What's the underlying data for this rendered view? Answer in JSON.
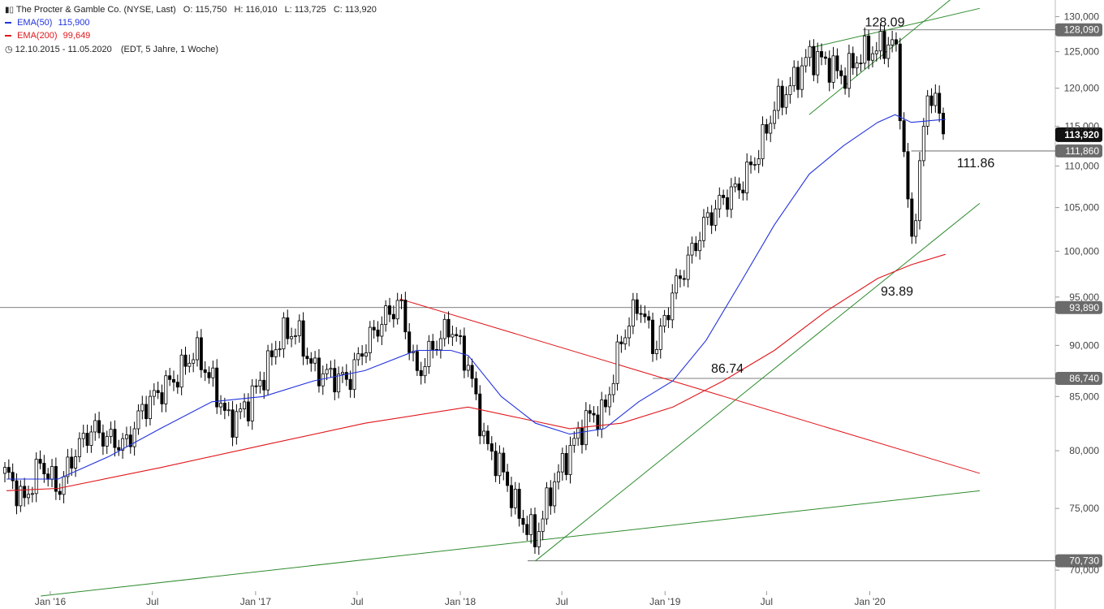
{
  "header": {
    "title": "The Procter & Gamble Co. (NYSE, Last)",
    "open": "O: 115,750",
    "high": "H: 116,010",
    "low": "L: 113,725",
    "close": "C: 113,920",
    "ema50_label": "EMA(50)",
    "ema50_value": "115,900",
    "ema200_label": "EMA(200)",
    "ema200_value": "99,649",
    "range": "12.10.2015 - 11.05.2020",
    "range_info": "(EDT, 5 Jahre, 1 Woche)",
    "colors": {
      "ema50": "#2233dd",
      "ema200": "#e0161b",
      "trend_green": "#2e8b2e",
      "trend_red": "#e0161b"
    }
  },
  "chart_data": {
    "type": "candlestick",
    "title": "The Procter & Gamble Co. (NYSE, Last)",
    "scale": "log",
    "ylim": [
      69500,
      131000
    ],
    "y_ticks": [
      "130,000",
      "125,000",
      "120,000",
      "115,000",
      "110,000",
      "105,000",
      "100,000",
      "95,000",
      "90,000",
      "85,000",
      "80,000",
      "75,000",
      "70,000"
    ],
    "y_tick_values": [
      130000,
      125000,
      120000,
      115000,
      110000,
      105000,
      100000,
      95000,
      90000,
      85000,
      80000,
      75000,
      70000
    ],
    "x_ticks": [
      "Jan '16",
      "Jul",
      "Jan '17",
      "Jul",
      "Jan '18",
      "Jul",
      "Jan '19",
      "Jul",
      "Jan '20"
    ],
    "x_tick_dates": [
      "2016-01",
      "2016-07",
      "2017-01",
      "2017-07",
      "2018-01",
      "2018-07",
      "2019-01",
      "2019-07",
      "2020-01"
    ],
    "x_range": [
      "2015-10-12",
      "2020-05-11"
    ],
    "price_path": [
      [
        "2015-10",
        78000
      ],
      [
        "2015-11",
        75500
      ],
      [
        "2015-12",
        79000
      ],
      [
        "2016-01",
        76500
      ],
      [
        "2016-02",
        80000
      ],
      [
        "2016-03",
        82000
      ],
      [
        "2016-04",
        81000
      ],
      [
        "2016-05",
        80500
      ],
      [
        "2016-06",
        84000
      ],
      [
        "2016-07",
        85500
      ],
      [
        "2016-08",
        87000
      ],
      [
        "2016-09",
        89500
      ],
      [
        "2016-10",
        86500
      ],
      [
        "2016-11",
        82500
      ],
      [
        "2016-12",
        84000
      ],
      [
        "2017-01",
        87000
      ],
      [
        "2017-02",
        91000
      ],
      [
        "2017-03",
        91500
      ],
      [
        "2017-04",
        87500
      ],
      [
        "2017-05",
        87000
      ],
      [
        "2017-06",
        86500
      ],
      [
        "2017-07",
        90000
      ],
      [
        "2017-08",
        92500
      ],
      [
        "2017-09",
        94500
      ],
      [
        "2017-10",
        87000
      ],
      [
        "2017-11",
        90000
      ],
      [
        "2017-12",
        92000
      ],
      [
        "2018-01",
        88000
      ],
      [
        "2018-02",
        80500
      ],
      [
        "2018-03",
        78500
      ],
      [
        "2018-04",
        74500
      ],
      [
        "2018-05",
        72500
      ],
      [
        "2018-06",
        77000
      ],
      [
        "2018-07",
        80000
      ],
      [
        "2018-08",
        83000
      ],
      [
        "2018-09",
        83500
      ],
      [
        "2018-10",
        90500
      ],
      [
        "2018-11",
        94500
      ],
      [
        "2018-12",
        89500
      ],
      [
        "2019-01",
        95500
      ],
      [
        "2019-02",
        99500
      ],
      [
        "2019-03",
        103500
      ],
      [
        "2019-04",
        106000
      ],
      [
        "2019-05",
        107500
      ],
      [
        "2019-06",
        111500
      ],
      [
        "2019-07",
        117500
      ],
      [
        "2019-08",
        120500
      ],
      [
        "2019-09",
        124500
      ],
      [
        "2019-10",
        123500
      ],
      [
        "2019-11",
        121500
      ],
      [
        "2019-12",
        124500
      ],
      [
        "2020-01",
        125500
      ],
      [
        "2020-02",
        126500
      ],
      [
        "2020-03",
        100500
      ],
      [
        "2020-04",
        120500
      ],
      [
        "2020-05",
        113920
      ]
    ],
    "ema50": [
      [
        "2015-10",
        77500
      ],
      [
        "2016-01",
        77500
      ],
      [
        "2016-04",
        79500
      ],
      [
        "2016-07",
        82000
      ],
      [
        "2016-10",
        84500
      ],
      [
        "2017-01",
        85000
      ],
      [
        "2017-04",
        86500
      ],
      [
        "2017-07",
        87500
      ],
      [
        "2017-10",
        89500
      ],
      [
        "2017-12",
        89500
      ],
      [
        "2018-01",
        89000
      ],
      [
        "2018-03",
        85000
      ],
      [
        "2018-05",
        82500
      ],
      [
        "2018-07",
        81500
      ],
      [
        "2018-09",
        82000
      ],
      [
        "2018-11",
        84500
      ],
      [
        "2019-01",
        86500
      ],
      [
        "2019-03",
        90500
      ],
      [
        "2019-05",
        96500
      ],
      [
        "2019-07",
        103000
      ],
      [
        "2019-09",
        109000
      ],
      [
        "2019-11",
        112500
      ],
      [
        "2020-01",
        115500
      ],
      [
        "2020-02",
        116500
      ],
      [
        "2020-03",
        115500
      ],
      [
        "2020-05",
        115900
      ]
    ],
    "ema200": [
      [
        "2015-10",
        76500
      ],
      [
        "2016-01",
        76700
      ],
      [
        "2016-07",
        78500
      ],
      [
        "2017-01",
        80500
      ],
      [
        "2017-07",
        82500
      ],
      [
        "2018-01",
        84000
      ],
      [
        "2018-04",
        83000
      ],
      [
        "2018-07",
        82000
      ],
      [
        "2018-10",
        82500
      ],
      [
        "2019-01",
        84000
      ],
      [
        "2019-04",
        86500
      ],
      [
        "2019-07",
        89500
      ],
      [
        "2019-10",
        93500
      ],
      [
        "2020-01",
        97000
      ],
      [
        "2020-03",
        98500
      ],
      [
        "2020-05",
        99649
      ]
    ],
    "horizontal_levels": [
      {
        "value": 128090,
        "label": "128,090"
      },
      {
        "value": 111860,
        "label": "111,860"
      },
      {
        "value": 93890,
        "label": "93,890"
      },
      {
        "value": 86740,
        "label": "86,740"
      },
      {
        "value": 70730,
        "label": "70,730"
      }
    ],
    "current_price": {
      "value": 113920,
      "label": "113,920"
    },
    "annotations": [
      "128.09",
      "111.86",
      "93.89",
      "86.74"
    ],
    "trendlines": [
      {
        "color": "green",
        "from": [
          "2015-12",
          68000
        ],
        "to": [
          "2020-07",
          76500
        ]
      },
      {
        "color": "green",
        "from": [
          "2018-05",
          70730
        ],
        "to": [
          "2020-07",
          105500
        ]
      },
      {
        "color": "green",
        "from": [
          "2019-09",
          116500
        ],
        "to": [
          "2020-06",
          134000
        ]
      },
      {
        "color": "green",
        "from": [
          "2019-09",
          125500
        ],
        "to": [
          "2020-07",
          131200
        ]
      },
      {
        "color": "red",
        "from": [
          "2017-09",
          94800
        ],
        "to": [
          "2020-07",
          78000
        ]
      }
    ]
  }
}
